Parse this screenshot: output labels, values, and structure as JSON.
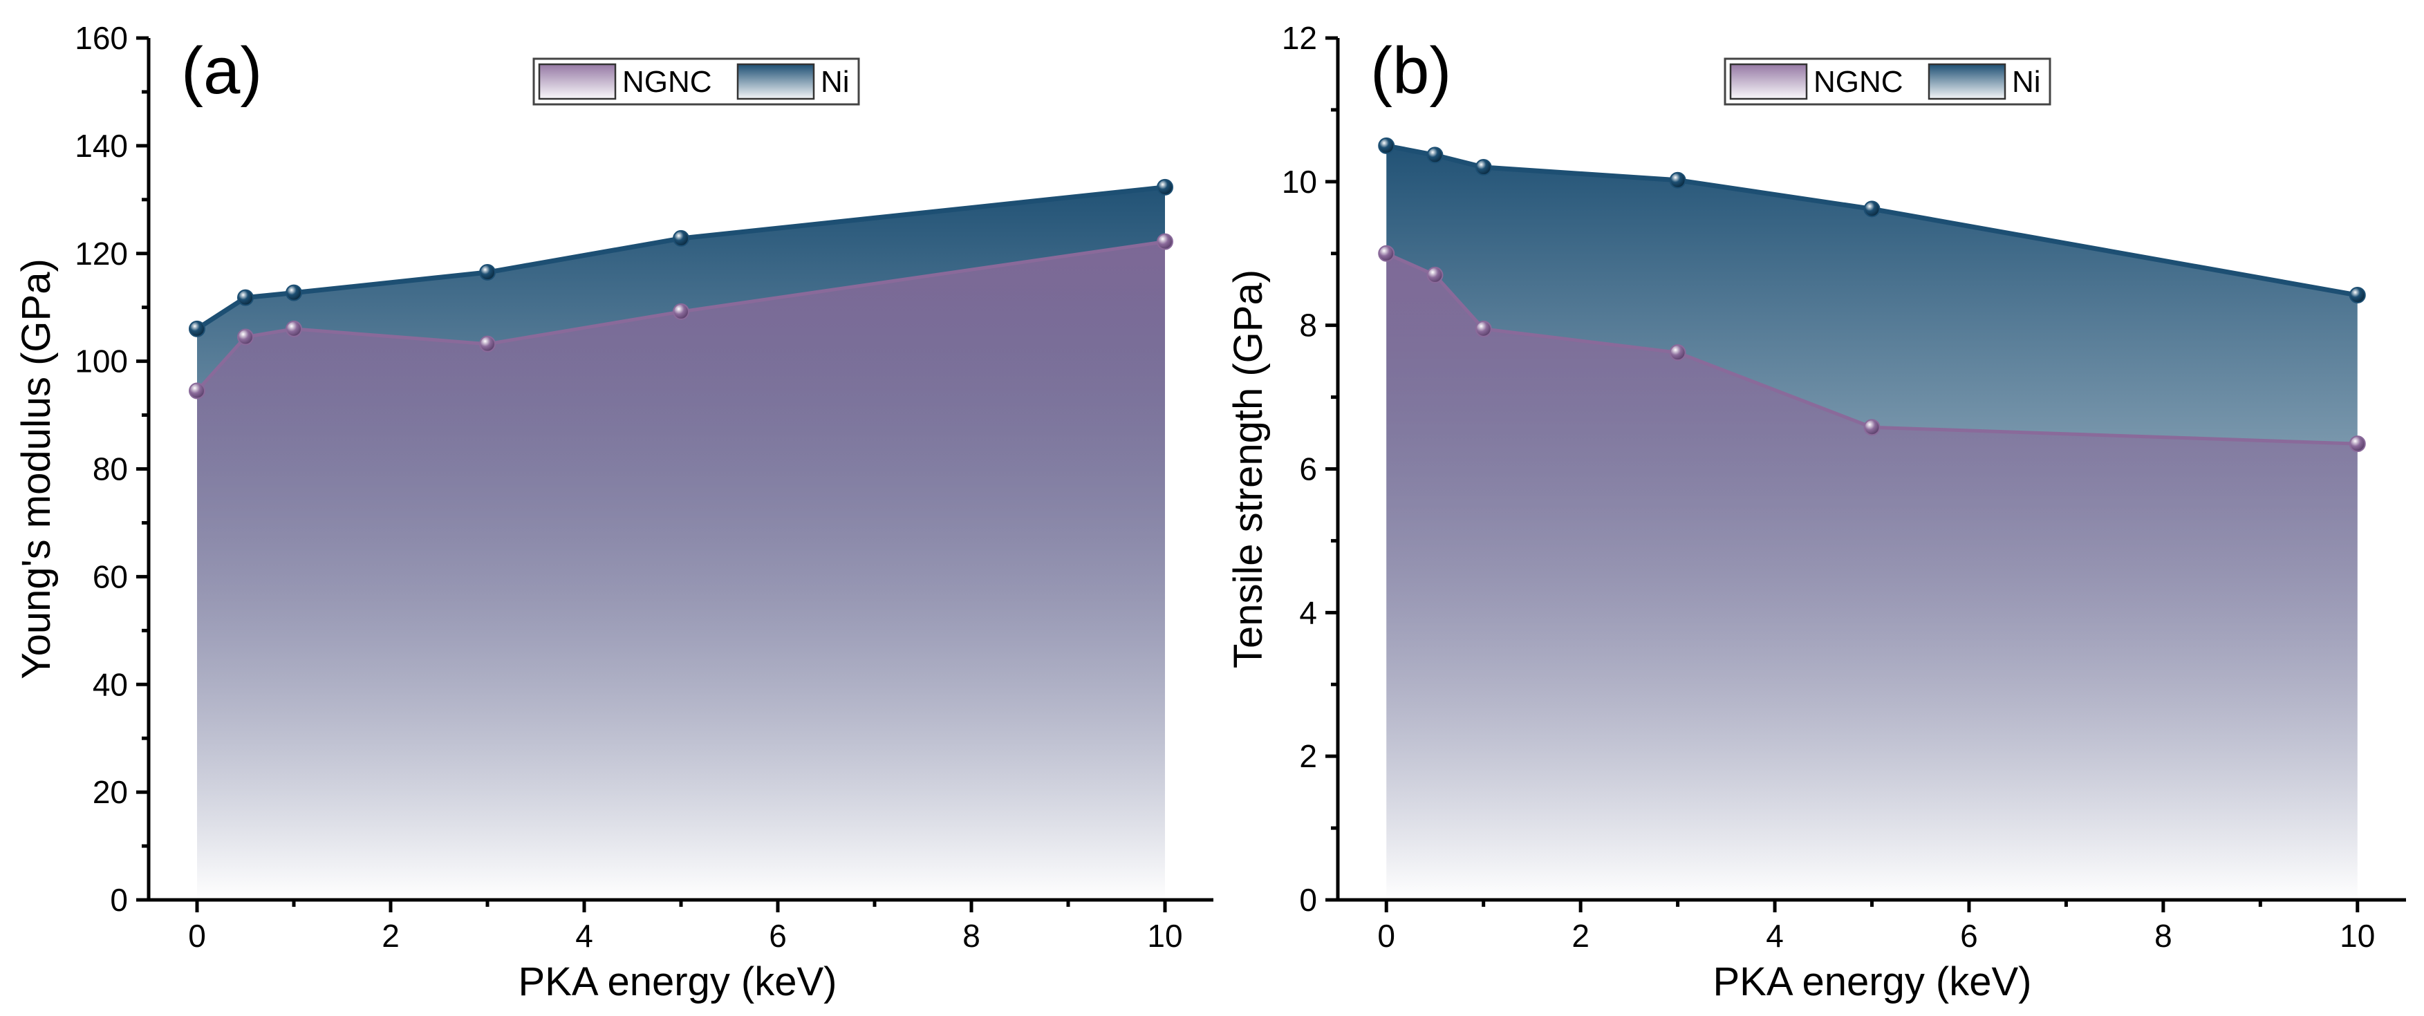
{
  "colors": {
    "ni_line": "#1d4f73",
    "ni_fill_top": "#1d4f73",
    "ngnc_line": "#8a6a9a",
    "ngnc_fill_top": "#8a6a9a",
    "marker_highlight": "#ffffff"
  },
  "legend": [
    "NGNC",
    "Ni"
  ],
  "chart_data": [
    {
      "type": "area",
      "panel_label": "(a)",
      "xlabel": "PKA energy (keV)",
      "ylabel": "Young's modulus (GPa)",
      "xlim": [
        -0.5,
        10.5
      ],
      "ylim": [
        0,
        160
      ],
      "xticks": [
        0,
        2,
        4,
        6,
        8,
        10
      ],
      "yticks": [
        0,
        20,
        40,
        60,
        80,
        100,
        120,
        140,
        160
      ],
      "x": [
        0,
        0.5,
        1,
        3,
        5,
        10
      ],
      "series": [
        {
          "name": "NGNC",
          "values": [
            94.5,
            104.5,
            106,
            103.2,
            109.2,
            122.2
          ]
        },
        {
          "name": "Ni",
          "values": [
            106,
            111.8,
            112.7,
            116.5,
            122.8,
            132.3
          ]
        }
      ]
    },
    {
      "type": "area",
      "panel_label": "(b)",
      "xlabel": "PKA energy (keV)",
      "ylabel": "Tensile strength  (GPa)",
      "xlim": [
        -0.5,
        10.5
      ],
      "ylim": [
        0,
        12
      ],
      "xticks": [
        0,
        2,
        4,
        6,
        8,
        10
      ],
      "yticks": [
        0,
        2,
        4,
        6,
        8,
        10,
        12
      ],
      "x": [
        0,
        0.5,
        1,
        3,
        5,
        10
      ],
      "series": [
        {
          "name": "NGNC",
          "values": [
            9.0,
            8.7,
            7.95,
            7.62,
            6.58,
            6.35
          ]
        },
        {
          "name": "Ni",
          "values": [
            10.5,
            10.37,
            10.2,
            10.02,
            9.62,
            8.42
          ]
        }
      ]
    }
  ]
}
